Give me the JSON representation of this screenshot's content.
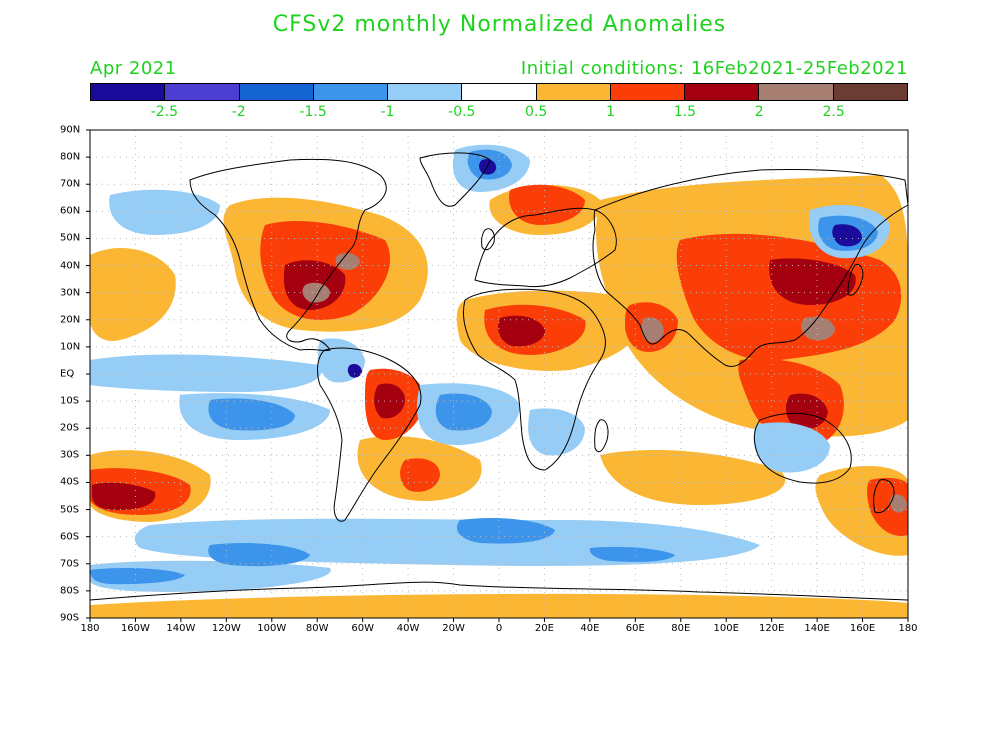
{
  "header": {
    "title": "CFSv2 monthly Normalized Anomalies",
    "month": "Apr 2021",
    "init": "Initial conditions: 16Feb2021-25Feb2021"
  },
  "colorbar": {
    "colors": [
      "#1b0b9a",
      "#4b3ed0",
      "#1464d2",
      "#3c95eb",
      "#96cdf6",
      "#ffffff",
      "#fbb733",
      "#fb3e07",
      "#a5000f",
      "#a67e72",
      "#6b3c33"
    ],
    "labels": [
      "-2.5",
      "-2",
      "-1.5",
      "-1",
      "-0.5",
      "0.5",
      "1",
      "1.5",
      "2",
      "2.5"
    ]
  },
  "map": {
    "lat_labels": [
      "90N",
      "80N",
      "70N",
      "60N",
      "50N",
      "40N",
      "30N",
      "20N",
      "10N",
      "EQ",
      "10S",
      "20S",
      "30S",
      "40S",
      "50S",
      "60S",
      "70S",
      "80S",
      "90S"
    ],
    "lon_labels": [
      "180",
      "160W",
      "140W",
      "120W",
      "100W",
      "80W",
      "60W",
      "40W",
      "20W",
      "0",
      "20E",
      "40E",
      "60E",
      "80E",
      "100E",
      "120E",
      "140E",
      "160E",
      "180"
    ]
  }
}
